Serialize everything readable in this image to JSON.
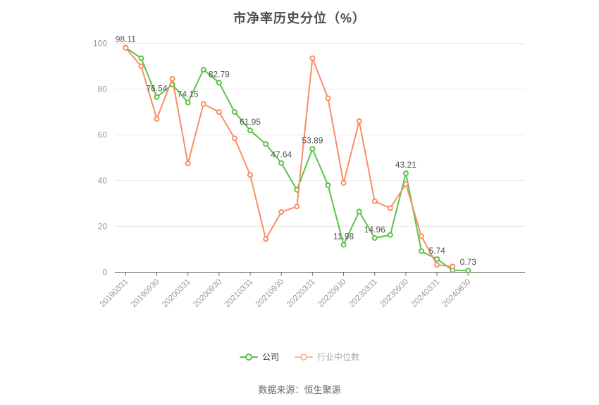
{
  "title": "市净率历史分位（%）",
  "footer": "数据来源：恒生聚源",
  "chart_data": {
    "type": "line",
    "title": "市净率历史分位（%）",
    "xlabel": "",
    "ylabel": "",
    "ylim": [
      0,
      100
    ],
    "y_ticks": [
      0,
      20,
      40,
      60,
      80,
      100
    ],
    "grid": "horizontal",
    "legend_position": "bottom",
    "x_point_count": 23,
    "x_tick_indices": [
      0,
      2,
      4,
      6,
      8,
      10,
      12,
      14,
      16,
      18,
      20,
      22
    ],
    "x_tick_labels": [
      "20190331",
      "20190930",
      "20200331",
      "20200930",
      "20210331",
      "20210930",
      "20220331",
      "20220930",
      "20230331",
      "20230930",
      "20240331",
      "20240830"
    ],
    "series": [
      {
        "name": "公司",
        "color": "#5BC24A",
        "marker": "hollow-circle",
        "values": [
          98.11,
          93.5,
          76.54,
          82,
          74.15,
          88.5,
          82.79,
          70,
          61.95,
          56,
          47.64,
          36,
          53.89,
          38,
          11.98,
          26.5,
          14.96,
          16.3,
          43.21,
          9.2,
          5.74,
          0.9,
          0.73
        ],
        "point_label_indices": [
          0,
          2,
          4,
          6,
          8,
          10,
          12,
          14,
          16,
          18,
          20,
          22
        ],
        "point_labels": [
          "98.11",
          "76.54",
          "74.15",
          "82.79",
          "61.95",
          "47.64",
          "53.89",
          "11.98",
          "14.96",
          "43.21",
          "5.74",
          "0.73"
        ]
      },
      {
        "name": "行业中位数",
        "color": "#F98E63",
        "marker": "hollow-circle",
        "values": [
          98,
          90,
          67,
          84.5,
          47.5,
          73.5,
          70,
          58.5,
          42.5,
          14.5,
          26.3,
          28.7,
          93.5,
          76,
          39,
          66,
          31,
          28,
          38.5,
          15.7,
          3.2,
          2.5,
          null
        ]
      }
    ],
    "colors": {
      "grid_line": "#e8e8e8",
      "axis_line": "#666666",
      "tick_label": "#999999",
      "data_label": "#555555"
    }
  }
}
